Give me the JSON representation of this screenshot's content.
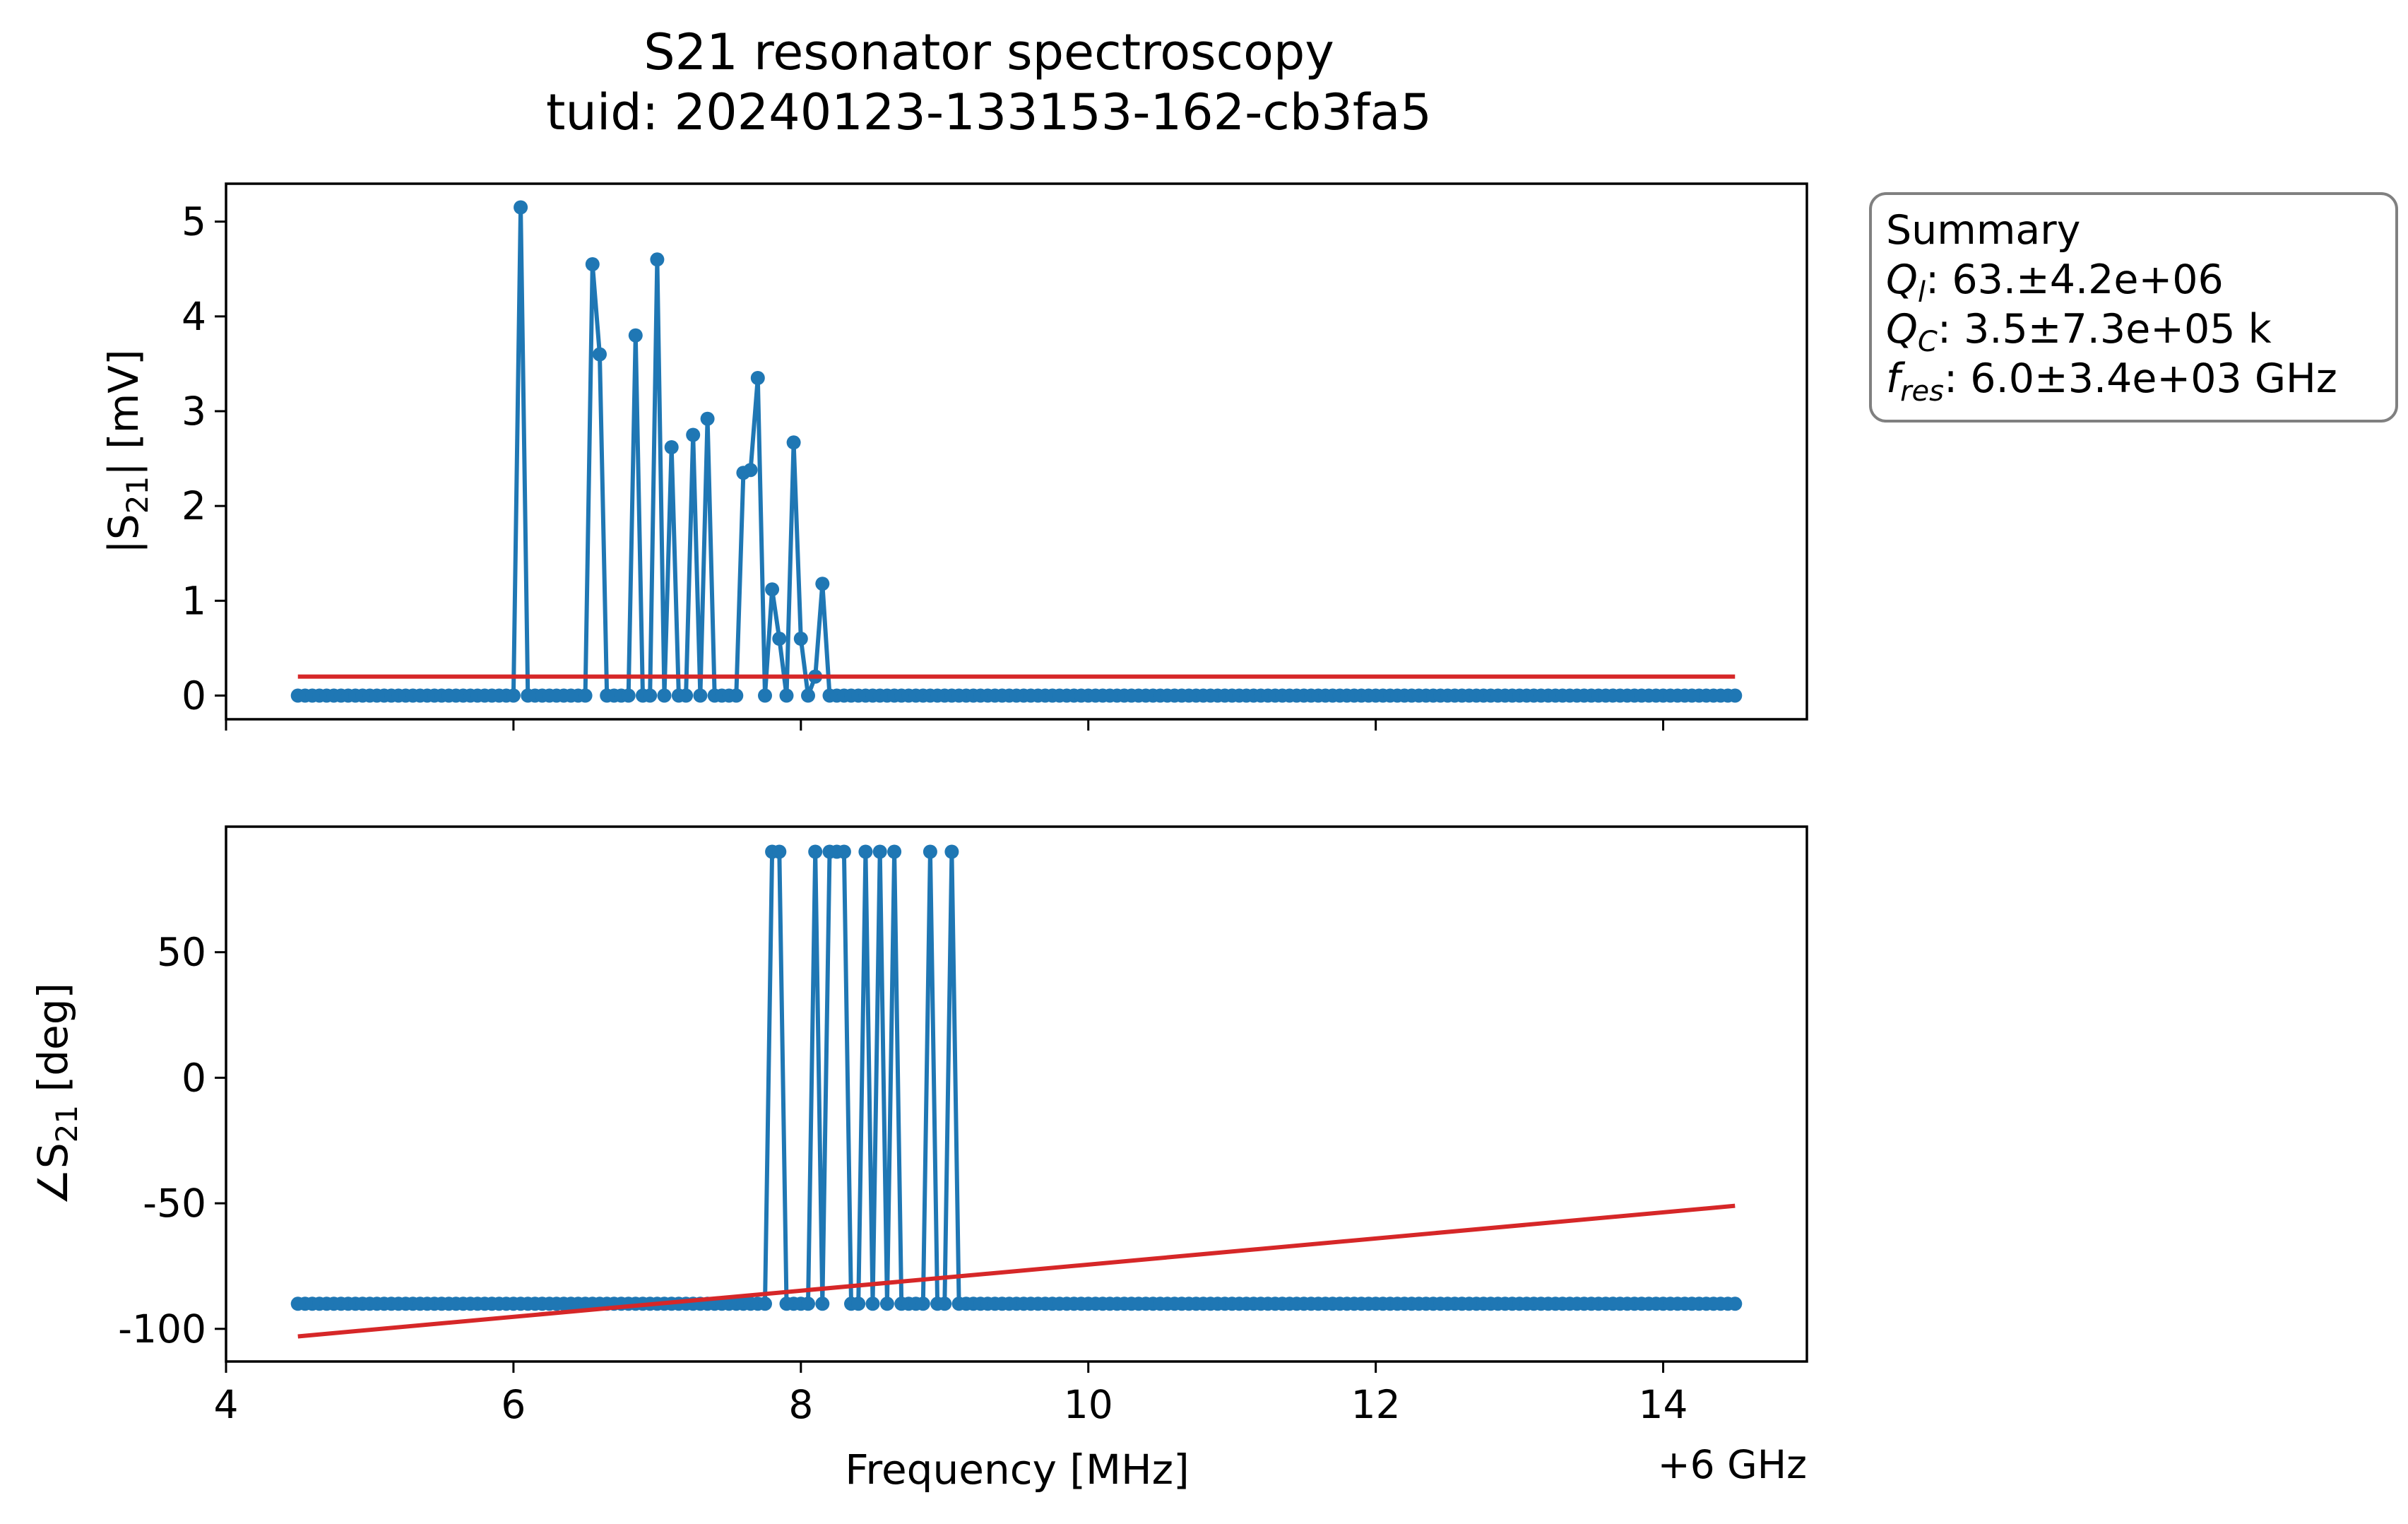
{
  "chart_data": {
    "type": "line",
    "title": "S21 resonator spectroscopy",
    "subtitle": "tuid: 20240123-133153-162-cb3fa5",
    "xlabel": "Frequency [MHz]",
    "x_offset_label": "+6 GHz",
    "xlim": [
      4,
      15
    ],
    "x_ticks": [
      "4",
      "6",
      "8",
      "10",
      "12",
      "14"
    ],
    "x_points": {
      "start": 4.5,
      "stop": 14.5,
      "count": 201
    },
    "colors": {
      "data": "#1f77b4",
      "fit": "#d62728"
    },
    "summary": {
      "heading": "Summary",
      "lines": [
        {
          "sym": "Q",
          "sub": "l",
          "text": ": 63.±4.2e+06"
        },
        {
          "sym": "Q",
          "sub": "C",
          "text": ": 3.5±7.3e+05 k"
        },
        {
          "sym": "f",
          "sub": "res",
          "text": ": 6.0±3.4e+03 GHz"
        }
      ]
    },
    "panels": [
      {
        "ylabel_pre": "|S",
        "ylabel_sub": "21",
        "ylabel_post": "| [mV]",
        "ylim": [
          -0.25,
          5.4
        ],
        "y_ticks": [
          0,
          1,
          2,
          3,
          4,
          5
        ],
        "y_tick_labels": [
          "0",
          "1",
          "2",
          "3",
          "4",
          "5"
        ],
        "data_series": {
          "name": "data",
          "baseline": 0,
          "peaks": [
            [
              6.05,
              5.15
            ],
            [
              6.55,
              4.55
            ],
            [
              6.6,
              3.6
            ],
            [
              6.85,
              3.8
            ],
            [
              7.0,
              4.6
            ],
            [
              7.1,
              2.62
            ],
            [
              7.25,
              2.75
            ],
            [
              7.35,
              2.92
            ],
            [
              7.6,
              2.35
            ],
            [
              7.65,
              2.38
            ],
            [
              7.7,
              3.35
            ],
            [
              7.8,
              1.12
            ],
            [
              7.85,
              0.6
            ],
            [
              7.95,
              2.67
            ],
            [
              8.0,
              0.6
            ],
            [
              8.1,
              0.2
            ],
            [
              8.15,
              1.18
            ]
          ]
        },
        "fit_series": {
          "name": "fit",
          "x": [
            4.5,
            14.5
          ],
          "y": [
            0.2,
            0.2
          ]
        }
      },
      {
        "ylabel_pre": "∠S",
        "ylabel_sub": "21",
        "ylabel_post": " [deg]",
        "ylim": [
          -113,
          100
        ],
        "y_ticks": [
          50,
          0,
          -50,
          -100
        ],
        "y_tick_labels": [
          "50",
          "0",
          "-50",
          "-100"
        ],
        "data_series": {
          "name": "data",
          "baseline": -90,
          "peaks": [
            [
              7.8,
              90
            ],
            [
              7.85,
              90
            ],
            [
              8.1,
              90
            ],
            [
              8.2,
              90
            ],
            [
              8.25,
              90
            ],
            [
              8.3,
              90
            ],
            [
              8.45,
              90
            ],
            [
              8.55,
              90
            ],
            [
              8.65,
              90
            ],
            [
              8.9,
              90
            ],
            [
              9.05,
              90
            ]
          ]
        },
        "fit_series": {
          "name": "fit",
          "x": [
            4.5,
            14.5
          ],
          "y": [
            -103,
            -51
          ]
        }
      }
    ]
  }
}
